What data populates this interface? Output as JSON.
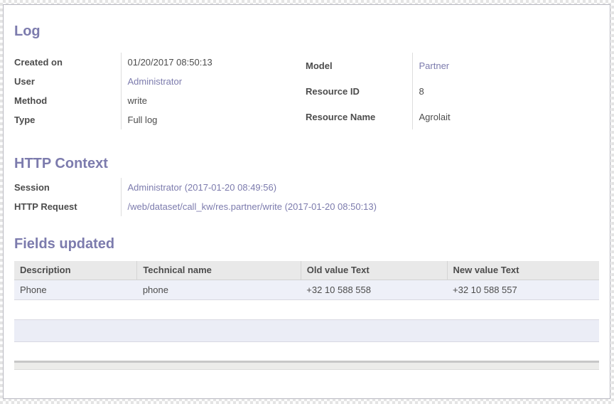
{
  "log_section": {
    "title": "Log",
    "left_fields": [
      {
        "label": "Created on",
        "value": "01/20/2017 08:50:13",
        "link": false
      },
      {
        "label": "User",
        "value": "Administrator",
        "link": true
      },
      {
        "label": "Method",
        "value": "write",
        "link": false
      },
      {
        "label": "Type",
        "value": "Full log",
        "link": false
      }
    ],
    "right_fields": [
      {
        "label": "Model",
        "value": "Partner",
        "link": true
      },
      {
        "label": "Resource ID",
        "value": "8",
        "link": false
      },
      {
        "label": "Resource Name",
        "value": "Agrolait",
        "link": false
      }
    ]
  },
  "http_section": {
    "title": "HTTP Context",
    "fields": [
      {
        "label": "Session",
        "value": "Administrator (2017-01-20 08:49:56)",
        "link": true
      },
      {
        "label": "HTTP Request",
        "value": "/web/dataset/call_kw/res.partner/write (2017-01-20 08:50:13)",
        "link": true
      }
    ]
  },
  "fields_section": {
    "title": "Fields updated",
    "table": {
      "headers": [
        "Description",
        "Technical name",
        "Old value Text",
        "New value Text"
      ],
      "rows": [
        [
          "Phone",
          "phone",
          "+32 10 588 558",
          "+32 10 588 557"
        ]
      ]
    }
  },
  "colors": {
    "accent_purple": "#7c7bad",
    "link_purple": "#7c7bad",
    "label_text": "#4c4c4c",
    "table_header_bg": "#e9e9e9",
    "table_row_bg": "#eef0f8",
    "empty_strip_bg": "#ebedf6",
    "card_border": "#b9b9c2"
  }
}
